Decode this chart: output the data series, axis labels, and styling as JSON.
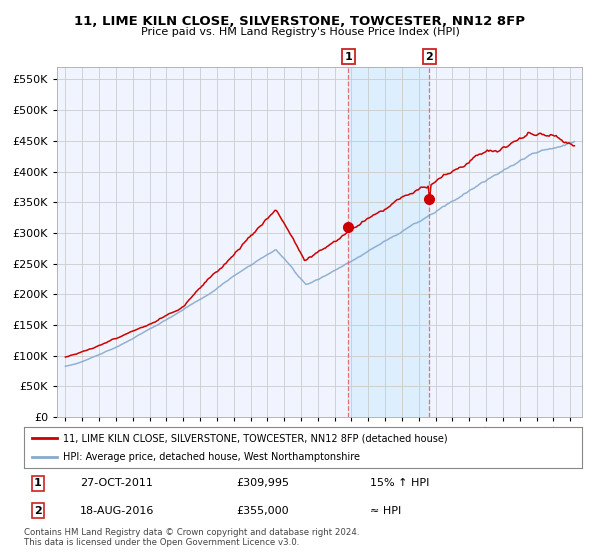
{
  "title": "11, LIME KILN CLOSE, SILVERSTONE, TOWCESTER, NN12 8FP",
  "subtitle": "Price paid vs. HM Land Registry's House Price Index (HPI)",
  "ylim": [
    0,
    570000
  ],
  "yticks": [
    0,
    50000,
    100000,
    150000,
    200000,
    250000,
    300000,
    350000,
    400000,
    450000,
    500000,
    550000
  ],
  "sale1_date": 2011.82,
  "sale1_price": 309995,
  "sale2_date": 2016.63,
  "sale2_price": 355000,
  "legend_line1": "11, LIME KILN CLOSE, SILVERSTONE, TOWCESTER, NN12 8FP (detached house)",
  "legend_line2": "HPI: Average price, detached house, West Northamptonshire",
  "annotation1_date": "27-OCT-2011",
  "annotation1_price": "£309,995",
  "annotation1_hpi": "15% ↑ HPI",
  "annotation2_date": "18-AUG-2016",
  "annotation2_price": "£355,000",
  "annotation2_hpi": "≈ HPI",
  "footer": "Contains HM Land Registry data © Crown copyright and database right 2024.\nThis data is licensed under the Open Government Licence v3.0.",
  "red_line_color": "#cc0000",
  "blue_line_color": "#88aacc",
  "shade_color": "#ddeeff",
  "vline_color": "#dd6666",
  "grid_color": "#cccccc",
  "plot_bg": "#f0f4ff"
}
